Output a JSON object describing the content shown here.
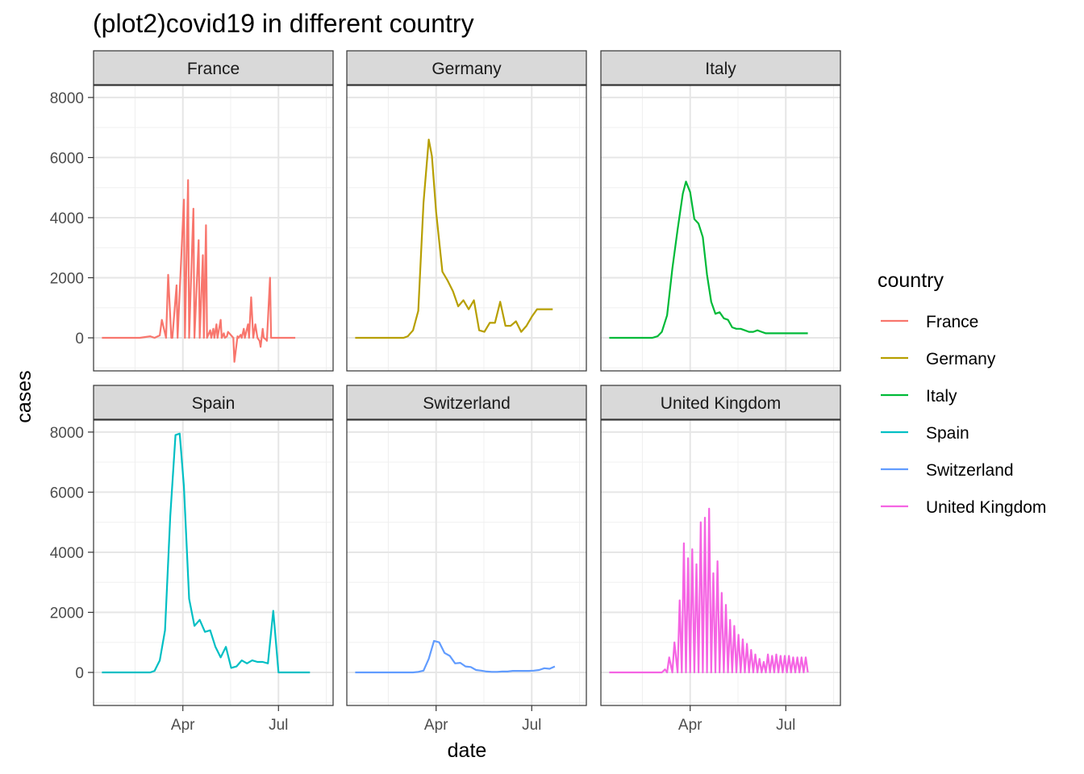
{
  "chart_data": {
    "type": "line",
    "title": "(plot2)covid19 in different country",
    "xlabel": "date",
    "ylabel": "cases",
    "x_ticks": [
      "Apr",
      "Jul"
    ],
    "x_tick_dates": [
      "2020-04-01",
      "2020-07-01"
    ],
    "xlim": [
      "2020-01-07",
      "2020-08-22"
    ],
    "y_ticks": [
      0,
      2000,
      4000,
      6000,
      8000
    ],
    "ylim": [
      -1100,
      8400
    ],
    "grid": true,
    "facets": "3 columns x 2 rows",
    "legend": {
      "title": "country",
      "placement": "right"
    },
    "series": [
      {
        "name": "France",
        "color": "#F8766D",
        "x": [
          "2020-01-15",
          "2020-02-01",
          "2020-02-20",
          "2020-03-01",
          "2020-03-05",
          "2020-03-10",
          "2020-03-12",
          "2020-03-16",
          "2020-03-18",
          "2020-03-21",
          "2020-03-22",
          "2020-03-26",
          "2020-03-27",
          "2020-04-02",
          "2020-04-03",
          "2020-04-06",
          "2020-04-07",
          "2020-04-11",
          "2020-04-12",
          "2020-04-16",
          "2020-04-17",
          "2020-04-20",
          "2020-04-21",
          "2020-04-23",
          "2020-04-24",
          "2020-04-27",
          "2020-04-28",
          "2020-04-30",
          "2020-05-01",
          "2020-05-03",
          "2020-05-04",
          "2020-05-07",
          "2020-05-08",
          "2020-05-10",
          "2020-05-11",
          "2020-05-13",
          "2020-05-14",
          "2020-05-19",
          "2020-05-20",
          "2020-05-23",
          "2020-05-24",
          "2020-05-26",
          "2020-05-27",
          "2020-05-29",
          "2020-05-30",
          "2020-06-02",
          "2020-06-03",
          "2020-06-05",
          "2020-06-07",
          "2020-06-09",
          "2020-06-11",
          "2020-06-13",
          "2020-06-14",
          "2020-06-16",
          "2020-06-17",
          "2020-06-19",
          "2020-06-20",
          "2020-06-23",
          "2020-06-24",
          "2020-06-28",
          "2020-06-29",
          "2020-07-03",
          "2020-07-04",
          "2020-07-07",
          "2020-07-08",
          "2020-07-11",
          "2020-07-12",
          "2020-07-16",
          "2020-07-17"
        ],
        "y": [
          0,
          0,
          0,
          50,
          0,
          80,
          600,
          0,
          2100,
          0,
          0,
          1750,
          0,
          4600,
          0,
          5250,
          0,
          4300,
          0,
          3250,
          0,
          2750,
          0,
          3750,
          0,
          250,
          0,
          300,
          0,
          450,
          0,
          600,
          0,
          150,
          0,
          50,
          200,
          0,
          -800,
          50,
          0,
          100,
          0,
          300,
          0,
          450,
          0,
          1350,
          0,
          450,
          0,
          -100,
          -300,
          300,
          0,
          -50,
          -100,
          2000,
          0,
          0,
          0,
          0,
          0,
          0,
          0,
          0,
          0,
          0,
          0
        ],
        "__note": ""
      },
      {
        "name": "Germany",
        "color": "#B79F00",
        "x": [
          "2020-01-15",
          "2020-02-01",
          "2020-02-15",
          "2020-03-01",
          "2020-03-05",
          "2020-03-10",
          "2020-03-15",
          "2020-03-20",
          "2020-03-25",
          "2020-03-28",
          "2020-04-01",
          "2020-04-07",
          "2020-04-12",
          "2020-04-17",
          "2020-04-22",
          "2020-04-27",
          "2020-05-02",
          "2020-05-07",
          "2020-05-12",
          "2020-05-17",
          "2020-05-22",
          "2020-05-27",
          "2020-06-01",
          "2020-06-06",
          "2020-06-11",
          "2020-06-16",
          "2020-06-21",
          "2020-06-26",
          "2020-07-01",
          "2020-07-06",
          "2020-07-11",
          "2020-07-16",
          "2020-07-21"
        ],
        "y": [
          0,
          0,
          0,
          0,
          50,
          250,
          900,
          4500,
          6600,
          6050,
          4200,
          2200,
          1900,
          1550,
          1050,
          1250,
          950,
          1250,
          250,
          200,
          500,
          500,
          1200,
          400,
          400,
          550,
          200,
          400,
          700,
          950,
          950,
          950,
          950
        ]
      },
      {
        "name": "Italy",
        "color": "#00BA38",
        "x": [
          "2020-01-15",
          "2020-02-01",
          "2020-02-15",
          "2020-02-20",
          "2020-02-25",
          "2020-03-01",
          "2020-03-05",
          "2020-03-10",
          "2020-03-15",
          "2020-03-20",
          "2020-03-25",
          "2020-03-28",
          "2020-04-01",
          "2020-04-05",
          "2020-04-09",
          "2020-04-13",
          "2020-04-17",
          "2020-04-21",
          "2020-04-25",
          "2020-04-29",
          "2020-05-03",
          "2020-05-07",
          "2020-05-11",
          "2020-05-15",
          "2020-05-19",
          "2020-05-23",
          "2020-05-27",
          "2020-05-31",
          "2020-06-04",
          "2020-06-08",
          "2020-06-12",
          "2020-06-16",
          "2020-06-20",
          "2020-06-24",
          "2020-06-28",
          "2020-07-02",
          "2020-07-06",
          "2020-07-10",
          "2020-07-14",
          "2020-07-18",
          "2020-07-22"
        ],
        "y": [
          0,
          0,
          0,
          0,
          0,
          50,
          200,
          750,
          2300,
          3600,
          4800,
          5200,
          4850,
          3950,
          3800,
          3350,
          2100,
          1200,
          800,
          850,
          650,
          600,
          350,
          300,
          300,
          250,
          200,
          200,
          250,
          200,
          150,
          150,
          150,
          150,
          150,
          150,
          150,
          150,
          150,
          150,
          150
        ]
      },
      {
        "name": "Spain",
        "color": "#00BFC4",
        "x": [
          "2020-01-15",
          "2020-02-01",
          "2020-02-20",
          "2020-03-01",
          "2020-03-05",
          "2020-03-10",
          "2020-03-15",
          "2020-03-20",
          "2020-03-25",
          "2020-03-29",
          "2020-04-02",
          "2020-04-07",
          "2020-04-12",
          "2020-04-17",
          "2020-04-22",
          "2020-04-27",
          "2020-05-02",
          "2020-05-07",
          "2020-05-12",
          "2020-05-17",
          "2020-05-22",
          "2020-05-27",
          "2020-06-01",
          "2020-06-06",
          "2020-06-11",
          "2020-06-16",
          "2020-06-21",
          "2020-06-26",
          "2020-07-01",
          "2020-07-06",
          "2020-07-11",
          "2020-07-16",
          "2020-07-21",
          "2020-07-26",
          "2020-07-31"
        ],
        "y": [
          0,
          0,
          0,
          0,
          50,
          400,
          1400,
          5200,
          7900,
          7950,
          6200,
          2450,
          1550,
          1750,
          1350,
          1400,
          850,
          500,
          850,
          150,
          200,
          400,
          300,
          400,
          350,
          350,
          300,
          2050,
          0,
          0,
          0,
          0,
          0,
          0,
          0
        ]
      },
      {
        "name": "Switzerland",
        "color": "#619CFF",
        "x": [
          "2020-01-15",
          "2020-02-01",
          "2020-02-20",
          "2020-03-01",
          "2020-03-05",
          "2020-03-10",
          "2020-03-15",
          "2020-03-20",
          "2020-03-25",
          "2020-03-30",
          "2020-04-04",
          "2020-04-09",
          "2020-04-14",
          "2020-04-19",
          "2020-04-24",
          "2020-04-29",
          "2020-05-04",
          "2020-05-09",
          "2020-05-14",
          "2020-05-19",
          "2020-05-24",
          "2020-05-29",
          "2020-06-03",
          "2020-06-08",
          "2020-06-13",
          "2020-06-18",
          "2020-06-23",
          "2020-06-28",
          "2020-07-03",
          "2020-07-08",
          "2020-07-13",
          "2020-07-18",
          "2020-07-23"
        ],
        "y": [
          0,
          0,
          0,
          0,
          0,
          0,
          20,
          60,
          450,
          1050,
          1000,
          650,
          550,
          300,
          320,
          200,
          180,
          80,
          60,
          30,
          20,
          20,
          30,
          30,
          50,
          50,
          50,
          50,
          60,
          80,
          140,
          120,
          200
        ]
      },
      {
        "name": "United Kingdom",
        "color": "#F564E3",
        "x": [
          "2020-01-15",
          "2020-02-01",
          "2020-02-20",
          "2020-03-01",
          "2020-03-05",
          "2020-03-08",
          "2020-03-10",
          "2020-03-12",
          "2020-03-15",
          "2020-03-17",
          "2020-03-20",
          "2020-03-22",
          "2020-03-24",
          "2020-03-26",
          "2020-03-28",
          "2020-03-30",
          "2020-04-01",
          "2020-04-03",
          "2020-04-05",
          "2020-04-07",
          "2020-04-09",
          "2020-04-11",
          "2020-04-13",
          "2020-04-15",
          "2020-04-17",
          "2020-04-19",
          "2020-04-21",
          "2020-04-23",
          "2020-04-25",
          "2020-04-27",
          "2020-04-29",
          "2020-05-01",
          "2020-05-03",
          "2020-05-05",
          "2020-05-07",
          "2020-05-09",
          "2020-05-11",
          "2020-05-13",
          "2020-05-15",
          "2020-05-17",
          "2020-05-19",
          "2020-05-21",
          "2020-05-23",
          "2020-05-25",
          "2020-05-27",
          "2020-05-29",
          "2020-05-31",
          "2020-06-02",
          "2020-06-04",
          "2020-06-06",
          "2020-06-08",
          "2020-06-10",
          "2020-06-12",
          "2020-06-14",
          "2020-06-16",
          "2020-06-18",
          "2020-06-20",
          "2020-06-22",
          "2020-06-24",
          "2020-06-26",
          "2020-06-28",
          "2020-06-30",
          "2020-07-02",
          "2020-07-04",
          "2020-07-06",
          "2020-07-08",
          "2020-07-10",
          "2020-07-12",
          "2020-07-14",
          "2020-07-16",
          "2020-07-18",
          "2020-07-20",
          "2020-07-22"
        ],
        "y": [
          0,
          0,
          0,
          0,
          0,
          100,
          0,
          500,
          0,
          1000,
          0,
          2400,
          0,
          4300,
          0,
          3800,
          0,
          4100,
          0,
          3600,
          0,
          5000,
          0,
          5150,
          0,
          5450,
          0,
          3300,
          0,
          3700,
          0,
          2650,
          0,
          2250,
          0,
          1750,
          0,
          1550,
          0,
          1250,
          0,
          1100,
          0,
          950,
          0,
          750,
          0,
          600,
          0,
          450,
          0,
          350,
          0,
          600,
          0,
          550,
          0,
          600,
          0,
          550,
          0,
          550,
          0,
          550,
          0,
          500,
          0,
          500,
          0,
          500,
          0,
          500,
          0
        ]
      }
    ]
  }
}
